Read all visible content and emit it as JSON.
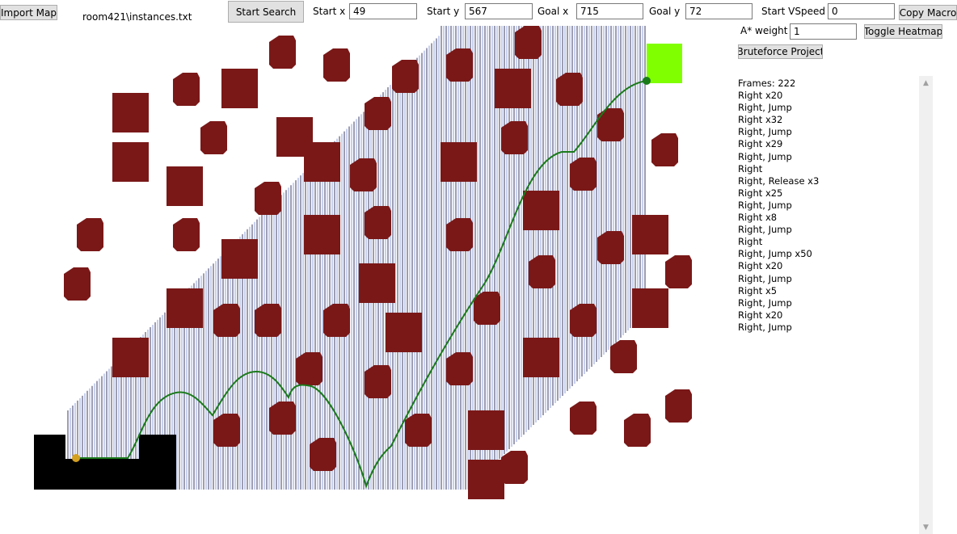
{
  "toolbar": {
    "import_map_label": "Import Map",
    "map_file": "room421\\instances.txt",
    "start_search_label": "Start Search",
    "start_x_label": "Start x",
    "start_x_value": "49",
    "start_y_label": "Start y",
    "start_y_value": "567",
    "goal_x_label": "Goal x",
    "goal_x_value": "715",
    "goal_y_label": "Goal y",
    "goal_y_value": "72",
    "start_vspeed_label": "Start VSpeed",
    "start_vspeed_value": "0",
    "copy_macro_label": "Copy Macro",
    "astar_weight_label": "A* weight",
    "astar_weight_value": "1",
    "toggle_heatmap_label": "Toggle Heatmap",
    "bruteforce_label": "Bruteforce Project"
  },
  "macro": {
    "lines": [
      "Frames: 222",
      "Right x20",
      "Right, Jump",
      "Right x32",
      "Right, Jump",
      "Right x29",
      "Right, Jump",
      "Right",
      "Right, Release x3",
      "Right x25",
      "Right, Jump",
      "Right x8",
      "Right, Jump",
      "Right",
      "Right, Jump x50",
      "Right x20",
      "Right, Jump",
      "Right x5",
      "Right, Jump",
      "Right x20",
      "Right, Jump"
    ]
  },
  "colors": {
    "obstacle": "#7a1818",
    "path": "#1a7a1a",
    "goal": "#80ff00",
    "start_marker": "#d4a020",
    "goal_marker": "#1a7a1a",
    "heatmap_line": "#4a5a9a",
    "ground": "#000000"
  },
  "icons": {
    "scroll_up": "chevron-up-icon",
    "scroll_down": "chevron-down-icon"
  }
}
